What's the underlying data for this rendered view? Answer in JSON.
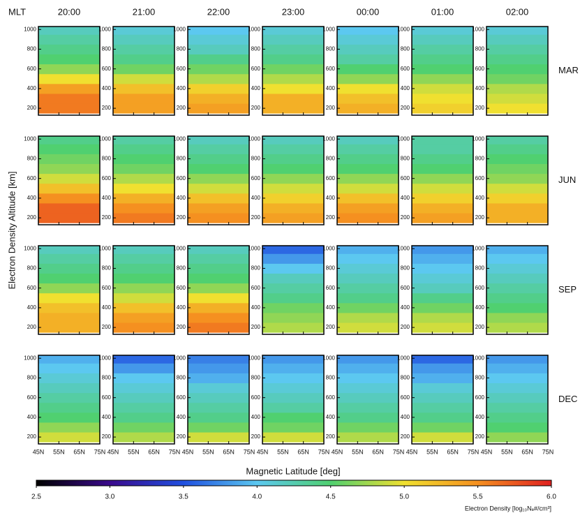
{
  "chart_data": {
    "type": "heatmap",
    "corner_label": "MLT",
    "columns": [
      "20:00",
      "21:00",
      "22:00",
      "23:00",
      "00:00",
      "01:00",
      "02:00"
    ],
    "rows": [
      "MAR",
      "JUN",
      "SEP",
      "DEC"
    ],
    "x_label": "Magnetic Latitude [deg]",
    "y_label": "Electron Density Altitude [km]",
    "xlim": [
      45,
      75
    ],
    "xticks": [
      {
        "value": 45,
        "label": "45N"
      },
      {
        "value": 55,
        "label": "55N"
      },
      {
        "value": 65,
        "label": "65N"
      },
      {
        "value": 75,
        "label": "75N"
      }
    ],
    "ylim": [
      130,
      1030
    ],
    "yticks": [
      200,
      400,
      600,
      800,
      1000
    ],
    "altitudes": [
      200,
      300,
      400,
      500,
      600,
      700,
      800,
      900,
      1000
    ],
    "values": [
      [
        [
          5.6,
          5.6,
          5.4,
          5.0,
          4.7,
          4.5,
          4.4,
          4.3,
          4.2
        ],
        [
          5.4,
          5.4,
          5.2,
          4.9,
          4.6,
          4.4,
          4.3,
          4.2,
          4.1
        ],
        [
          5.4,
          5.3,
          5.1,
          4.8,
          4.6,
          4.4,
          4.2,
          4.1,
          4.0
        ],
        [
          5.3,
          5.3,
          5.0,
          4.8,
          4.6,
          4.4,
          4.3,
          4.2,
          4.1
        ],
        [
          5.3,
          5.2,
          5.0,
          4.7,
          4.5,
          4.3,
          4.2,
          4.1,
          4.0
        ],
        [
          5.1,
          5.0,
          4.9,
          4.7,
          4.5,
          4.4,
          4.3,
          4.2,
          4.1
        ],
        [
          5.0,
          4.9,
          4.8,
          4.6,
          4.5,
          4.4,
          4.3,
          4.2,
          4.1
        ]
      ],
      [
        [
          5.7,
          5.7,
          5.5,
          5.2,
          4.9,
          4.7,
          4.6,
          4.5,
          4.4
        ],
        [
          5.6,
          5.5,
          5.3,
          5.0,
          4.8,
          4.6,
          4.5,
          4.4,
          4.3
        ],
        [
          5.5,
          5.4,
          5.2,
          4.9,
          4.7,
          4.5,
          4.4,
          4.3,
          4.2
        ],
        [
          5.4,
          5.3,
          5.1,
          4.9,
          4.7,
          4.5,
          4.4,
          4.3,
          4.2
        ],
        [
          5.5,
          5.4,
          5.2,
          4.9,
          4.7,
          4.5,
          4.4,
          4.3,
          4.2
        ],
        [
          5.4,
          5.3,
          5.1,
          4.9,
          4.7,
          4.5,
          4.4,
          4.3,
          4.3
        ],
        [
          5.3,
          5.3,
          5.1,
          4.9,
          4.7,
          4.6,
          4.5,
          4.4,
          4.3
        ]
      ],
      [
        [
          5.3,
          5.3,
          5.2,
          5.0,
          4.7,
          4.5,
          4.4,
          4.3,
          4.2
        ],
        [
          5.5,
          5.4,
          5.2,
          4.9,
          4.7,
          4.5,
          4.4,
          4.3,
          4.2
        ],
        [
          5.6,
          5.5,
          5.3,
          5.0,
          4.7,
          4.5,
          4.4,
          4.3,
          4.2
        ],
        [
          4.8,
          4.7,
          4.6,
          4.4,
          4.3,
          4.2,
          4.0,
          3.8,
          3.6
        ],
        [
          4.9,
          4.8,
          4.6,
          4.4,
          4.3,
          4.2,
          4.1,
          4.0,
          3.9
        ],
        [
          4.9,
          4.8,
          4.6,
          4.4,
          4.2,
          4.1,
          4.0,
          3.9,
          3.8
        ],
        [
          4.8,
          4.7,
          4.5,
          4.4,
          4.3,
          4.2,
          4.1,
          4.0,
          3.9
        ]
      ],
      [
        [
          4.9,
          4.7,
          4.5,
          4.4,
          4.3,
          4.2,
          4.1,
          4.0,
          3.9
        ],
        [
          4.8,
          4.6,
          4.4,
          4.3,
          4.2,
          4.1,
          4.0,
          3.8,
          3.6
        ],
        [
          4.9,
          4.6,
          4.4,
          4.3,
          4.2,
          4.1,
          3.9,
          3.8,
          3.7
        ],
        [
          4.9,
          4.6,
          4.5,
          4.3,
          4.2,
          4.1,
          4.0,
          3.9,
          3.8
        ],
        [
          4.8,
          4.6,
          4.4,
          4.3,
          4.2,
          4.1,
          4.0,
          3.9,
          3.8
        ],
        [
          4.9,
          4.6,
          4.4,
          4.3,
          4.2,
          4.1,
          3.9,
          3.8,
          3.6
        ],
        [
          4.7,
          4.5,
          4.4,
          4.3,
          4.2,
          4.1,
          4.0,
          3.9,
          3.8
        ]
      ]
    ],
    "colorscale": [
      [
        2.5,
        "#000000"
      ],
      [
        3.0,
        "#3a0a8c"
      ],
      [
        3.5,
        "#2050e0"
      ],
      [
        4.0,
        "#5cc8f0"
      ],
      [
        4.5,
        "#50d070"
      ],
      [
        5.0,
        "#f0e030"
      ],
      [
        5.5,
        "#f59020"
      ],
      [
        6.0,
        "#e02020"
      ]
    ],
    "clim": [
      2.5,
      6.0
    ],
    "cticks": [
      2.5,
      {
        "value": 3,
        "label": "3.0"
      },
      3.5,
      {
        "value": 4,
        "label": "4.0"
      },
      4.5,
      {
        "value": 5,
        "label": "5.0"
      },
      5.5,
      {
        "value": 6,
        "label": "6.0"
      }
    ],
    "colorbar_label": "Electron Density [log₁₀Nₑ#/cm³]"
  }
}
